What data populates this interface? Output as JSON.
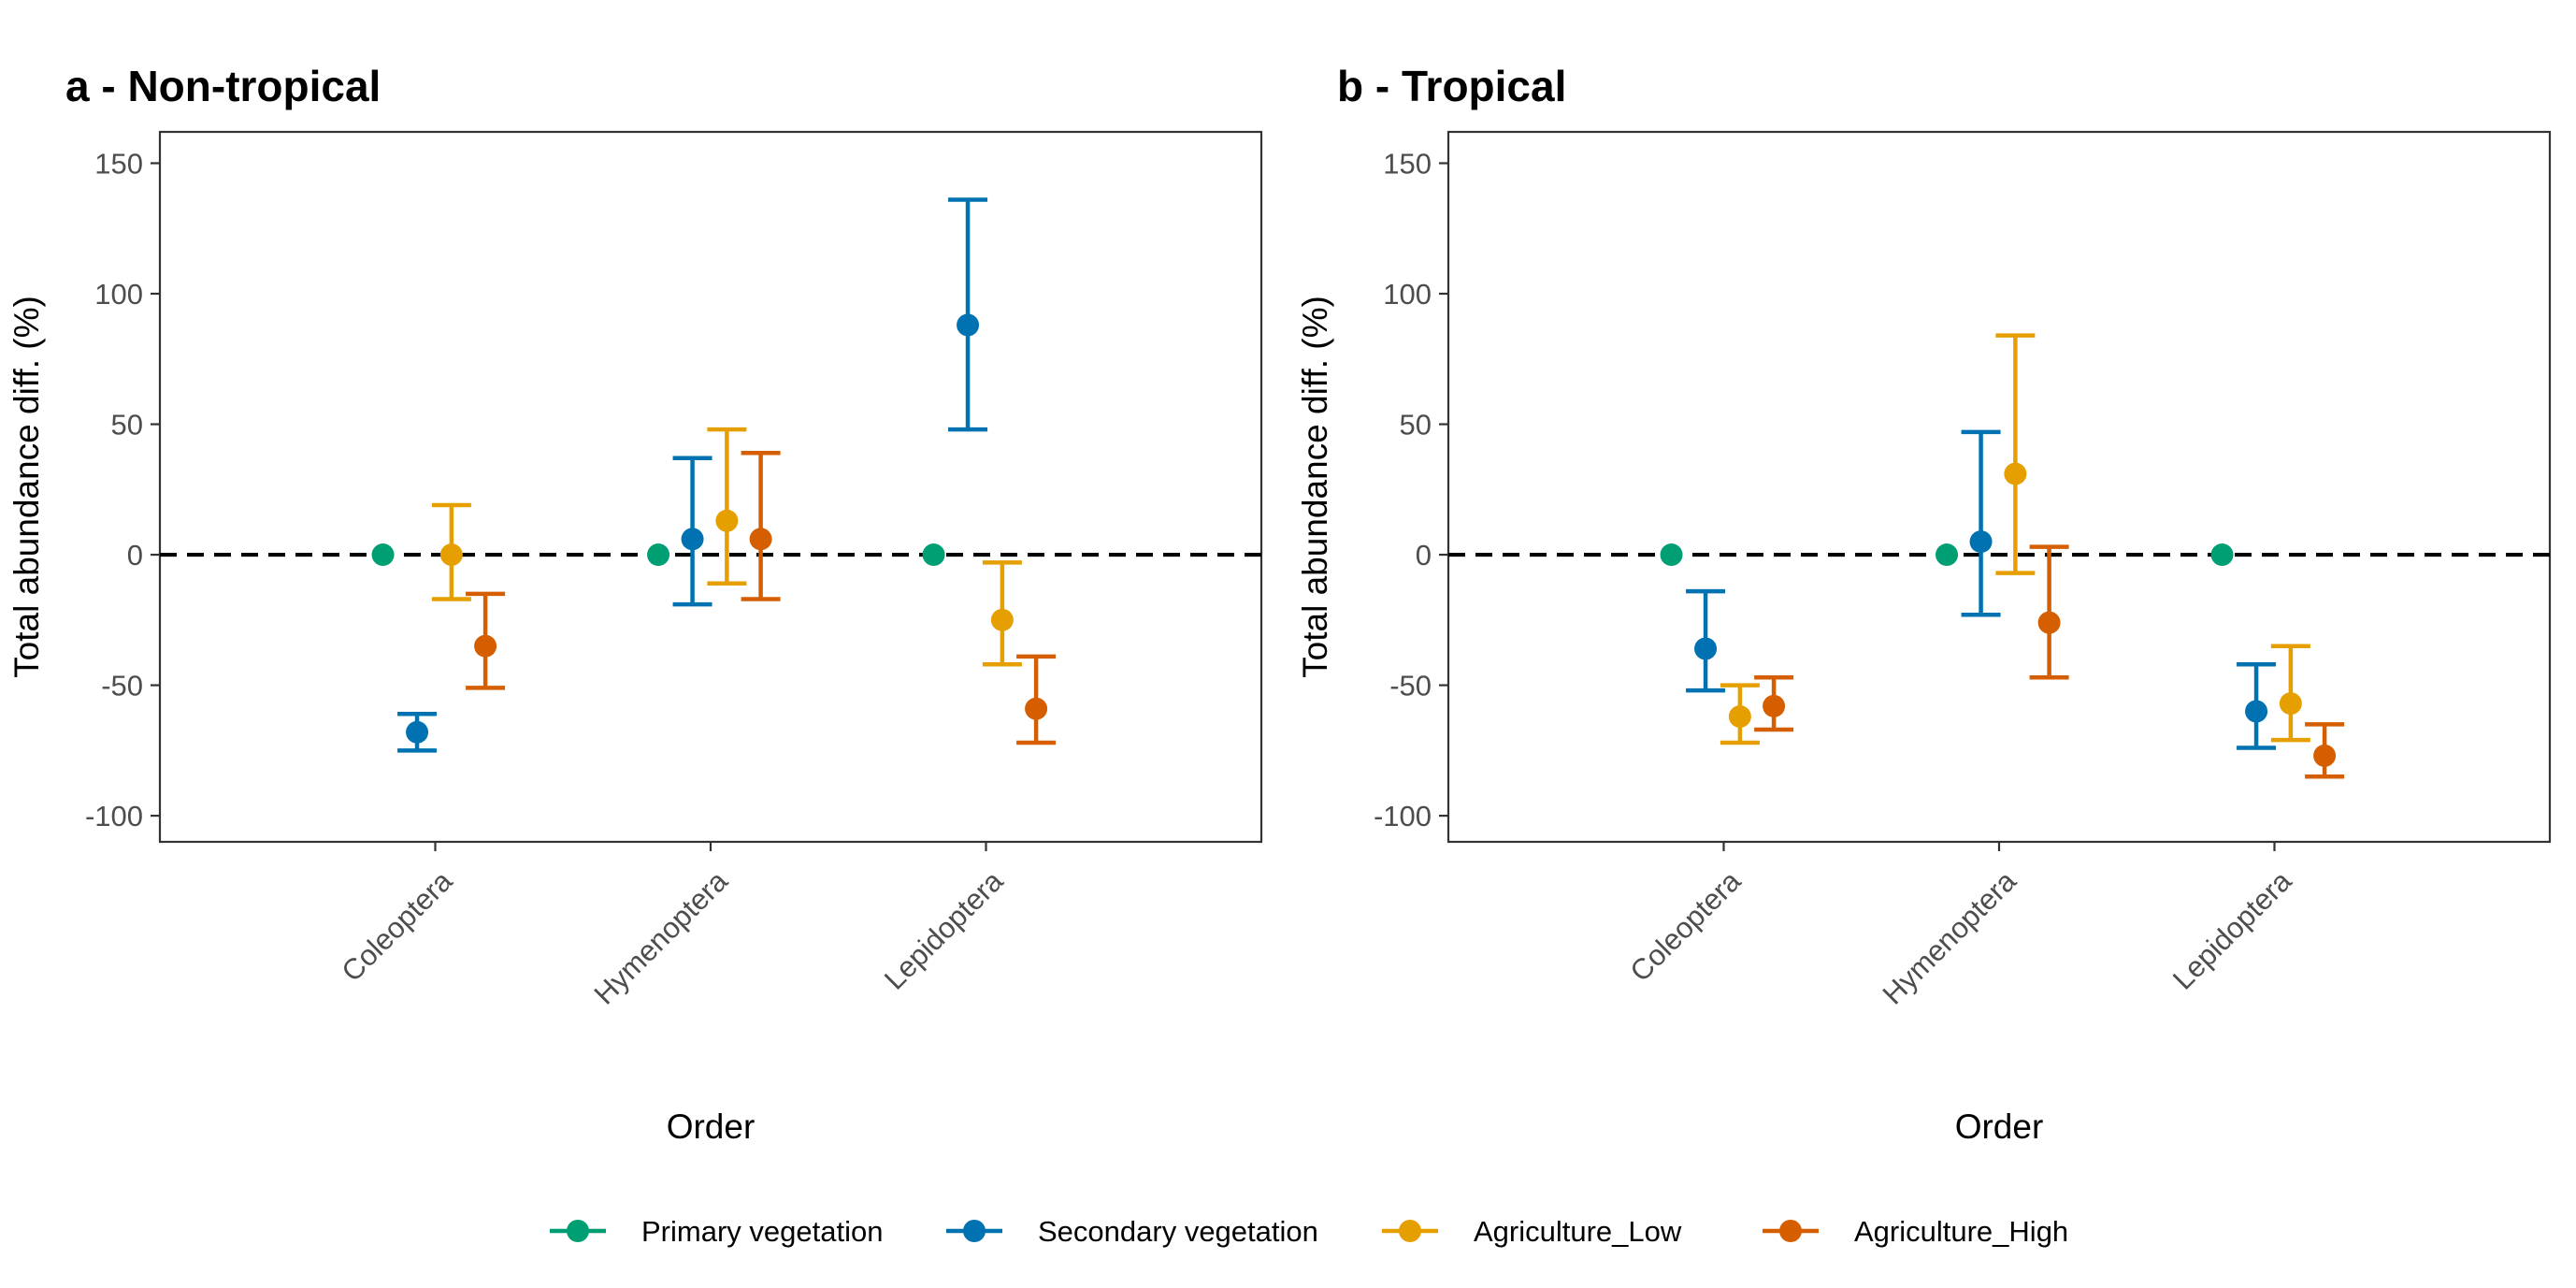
{
  "chart_data": {
    "type": "scatter",
    "categories": [
      "Coleoptera",
      "Hymenoptera",
      "Lepidoptera"
    ],
    "ylim": [
      -110,
      162
    ],
    "yticks": [
      -100,
      -50,
      0,
      50,
      100,
      150
    ],
    "xlabel": "Order",
    "ylabel": "Total abundance diff. (%)",
    "reference_line": 0,
    "grid": false,
    "legend_position": "bottom",
    "series_colors": {
      "Primary vegetation": "#009E73",
      "Secondary vegetation": "#0072B2",
      "Agriculture_Low": "#E69F00",
      "Agriculture_High": "#D55E00"
    },
    "legend": [
      "Primary vegetation",
      "Secondary vegetation",
      "Agriculture_Low",
      "Agriculture_High"
    ],
    "panels": [
      {
        "title": "a - Non-tropical",
        "series": [
          {
            "name": "Primary vegetation",
            "values": [
              0,
              0,
              0
            ],
            "lower": [
              null,
              null,
              null
            ],
            "upper": [
              null,
              null,
              null
            ]
          },
          {
            "name": "Secondary vegetation",
            "values": [
              -68,
              6,
              88
            ],
            "lower": [
              -75,
              -19,
              48
            ],
            "upper": [
              -61,
              37,
              136
            ]
          },
          {
            "name": "Agriculture_Low",
            "values": [
              0,
              13,
              -25
            ],
            "lower": [
              -17,
              -11,
              -42
            ],
            "upper": [
              19,
              48,
              -3
            ]
          },
          {
            "name": "Agriculture_High",
            "values": [
              -35,
              6,
              -59
            ],
            "lower": [
              -51,
              -17,
              -72
            ],
            "upper": [
              -15,
              39,
              -39
            ]
          }
        ]
      },
      {
        "title": "b - Tropical",
        "series": [
          {
            "name": "Primary vegetation",
            "values": [
              0,
              0,
              0
            ],
            "lower": [
              null,
              null,
              null
            ],
            "upper": [
              null,
              null,
              null
            ]
          },
          {
            "name": "Secondary vegetation",
            "values": [
              -36,
              5,
              -60
            ],
            "lower": [
              -52,
              -23,
              -74
            ],
            "upper": [
              -14,
              47,
              -42
            ]
          },
          {
            "name": "Agriculture_Low",
            "values": [
              -62,
              31,
              -57
            ],
            "lower": [
              -72,
              -7,
              -71
            ],
            "upper": [
              -50,
              84,
              -35
            ]
          },
          {
            "name": "Agriculture_High",
            "values": [
              -58,
              -26,
              -77
            ],
            "lower": [
              -67,
              -47,
              -85
            ],
            "upper": [
              -47,
              3,
              -65
            ]
          }
        ]
      }
    ]
  }
}
